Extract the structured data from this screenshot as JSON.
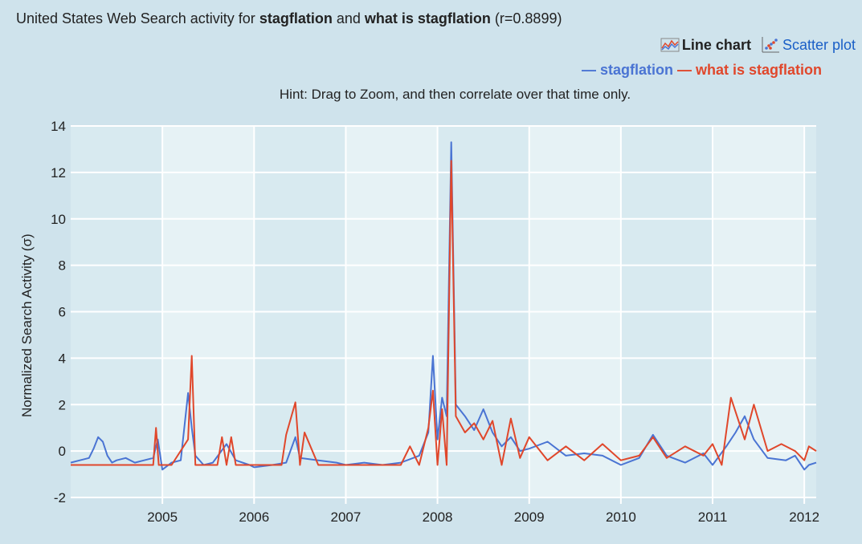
{
  "title": {
    "prefix": "United States Web Search activity for ",
    "term1": "stagflation",
    "mid": " and ",
    "term2": "what is stagflation",
    "suffix": " (r=0.8899)"
  },
  "view_switch": {
    "line_label": "Line chart",
    "line_icon": "line-chart-icon",
    "scatter_label": "Scatter plot",
    "scatter_icon": "scatter-plot-icon"
  },
  "hint": "Hint: Drag to Zoom, and then correlate over that time only.",
  "colors": {
    "stagflation": "#4a74d3",
    "what_is_stagflation": "#e0472b",
    "background": "#cfe3ec"
  },
  "chart_data": {
    "type": "line",
    "title": "United States Web Search activity for stagflation and what is stagflation (r=0.8899)",
    "xlabel": "",
    "ylabel": "Normalized Search Activity (σ)",
    "xlim": [
      2004.0,
      2012.13
    ],
    "ylim": [
      -2,
      14
    ],
    "xticks": [
      "2005",
      "2006",
      "2007",
      "2008",
      "2009",
      "2010",
      "2011",
      "2012"
    ],
    "yticks": [
      "-2",
      "0",
      "2",
      "4",
      "6",
      "8",
      "10",
      "12",
      "14"
    ],
    "legend_position": "top-right",
    "series": [
      {
        "name": "stagflation",
        "legend_label": "— stagflation",
        "color": "#4a74d3",
        "x": [
          2004.0,
          2004.1,
          2004.2,
          2004.25,
          2004.3,
          2004.35,
          2004.4,
          2004.45,
          2004.5,
          2004.6,
          2004.7,
          2004.8,
          2004.9,
          2004.95,
          2005.0,
          2005.1,
          2005.2,
          2005.28,
          2005.32,
          2005.36,
          2005.45,
          2005.55,
          2005.7,
          2005.8,
          2005.95,
          2006.0,
          2006.2,
          2006.35,
          2006.45,
          2006.5,
          2006.7,
          2006.9,
          2007.0,
          2007.2,
          2007.4,
          2007.6,
          2007.8,
          2007.9,
          2007.95,
          2008.0,
          2008.05,
          2008.1,
          2008.15,
          2008.2,
          2008.3,
          2008.4,
          2008.5,
          2008.6,
          2008.7,
          2008.8,
          2008.9,
          2009.0,
          2009.2,
          2009.4,
          2009.6,
          2009.8,
          2010.0,
          2010.2,
          2010.35,
          2010.5,
          2010.7,
          2010.9,
          2011.0,
          2011.15,
          2011.25,
          2011.35,
          2011.45,
          2011.6,
          2011.8,
          2011.9,
          2012.0,
          2012.05,
          2012.13
        ],
        "values": [
          -0.5,
          -0.4,
          -0.3,
          0.1,
          0.6,
          0.4,
          -0.2,
          -0.5,
          -0.4,
          -0.3,
          -0.5,
          -0.4,
          -0.3,
          0.5,
          -0.8,
          -0.5,
          -0.4,
          2.5,
          1.0,
          -0.2,
          -0.6,
          -0.5,
          0.3,
          -0.4,
          -0.6,
          -0.7,
          -0.6,
          -0.5,
          0.6,
          -0.3,
          -0.4,
          -0.5,
          -0.6,
          -0.5,
          -0.6,
          -0.5,
          -0.2,
          0.8,
          4.1,
          0.5,
          2.3,
          1.5,
          13.3,
          2.0,
          1.5,
          0.9,
          1.8,
          0.8,
          0.2,
          0.6,
          0.0,
          0.1,
          0.4,
          -0.2,
          -0.1,
          -0.2,
          -0.6,
          -0.3,
          0.7,
          -0.2,
          -0.5,
          -0.1,
          -0.6,
          0.2,
          0.8,
          1.5,
          0.5,
          -0.3,
          -0.4,
          -0.2,
          -0.8,
          -0.6,
          -0.5
        ]
      },
      {
        "name": "what is stagflation",
        "legend_label": "— what is stagflation",
        "color": "#e0472b",
        "x": [
          2004.0,
          2004.2,
          2004.4,
          2004.6,
          2004.8,
          2004.9,
          2004.93,
          2004.96,
          2005.0,
          2005.1,
          2005.28,
          2005.32,
          2005.36,
          2005.45,
          2005.6,
          2005.65,
          2005.7,
          2005.75,
          2005.8,
          2006.0,
          2006.2,
          2006.3,
          2006.35,
          2006.45,
          2006.5,
          2006.55,
          2006.7,
          2006.9,
          2007.0,
          2007.2,
          2007.4,
          2007.6,
          2007.7,
          2007.8,
          2007.9,
          2007.95,
          2008.0,
          2008.05,
          2008.1,
          2008.15,
          2008.2,
          2008.3,
          2008.4,
          2008.5,
          2008.6,
          2008.7,
          2008.8,
          2008.9,
          2009.0,
          2009.2,
          2009.4,
          2009.6,
          2009.8,
          2010.0,
          2010.2,
          2010.35,
          2010.5,
          2010.7,
          2010.9,
          2011.0,
          2011.1,
          2011.2,
          2011.35,
          2011.45,
          2011.6,
          2011.75,
          2011.9,
          2012.0,
          2012.05,
          2012.13
        ],
        "values": [
          -0.6,
          -0.6,
          -0.6,
          -0.6,
          -0.6,
          -0.6,
          1.0,
          -0.6,
          -0.6,
          -0.6,
          0.5,
          4.1,
          -0.6,
          -0.6,
          -0.6,
          0.6,
          -0.6,
          0.6,
          -0.6,
          -0.6,
          -0.6,
          -0.6,
          0.7,
          2.1,
          -0.6,
          0.8,
          -0.6,
          -0.6,
          -0.6,
          -0.6,
          -0.6,
          -0.6,
          0.2,
          -0.6,
          1.0,
          2.6,
          -0.6,
          1.8,
          -0.6,
          12.5,
          1.5,
          0.8,
          1.2,
          0.5,
          1.3,
          -0.6,
          1.4,
          -0.3,
          0.6,
          -0.4,
          0.2,
          -0.4,
          0.3,
          -0.4,
          -0.2,
          0.6,
          -0.3,
          0.2,
          -0.2,
          0.3,
          -0.6,
          2.3,
          0.5,
          2.0,
          0.0,
          0.3,
          0.0,
          -0.4,
          0.2,
          0.0
        ]
      }
    ]
  }
}
